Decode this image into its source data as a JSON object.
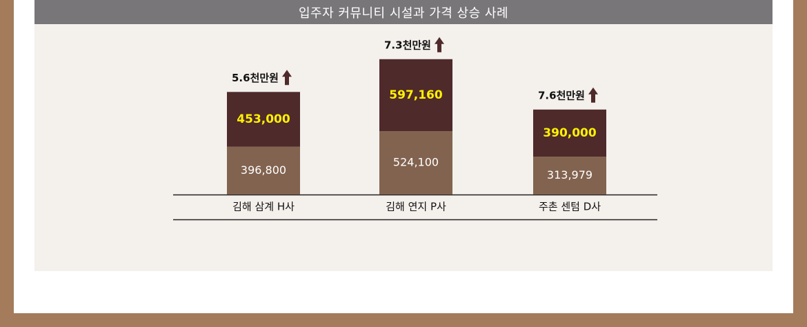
{
  "chart_data": {
    "type": "bar",
    "stacked": true,
    "title": "입주자 커뮤니티 시설과 가격 상승 사례",
    "categories": [
      "김해 삼계 H사",
      "김해 연지 P사",
      "주촌 센텀 D사"
    ],
    "series": [
      {
        "values": [
          396800,
          524100,
          313979
        ],
        "color": "#82634f"
      },
      {
        "values": [
          453000,
          597160,
          390000
        ],
        "color": "#4e2a2b"
      }
    ],
    "bottom_labels": [
      "396,800",
      "524,100",
      "313,979"
    ],
    "top_labels": [
      "453,000",
      "597,160",
      "390,000"
    ],
    "total_labels": [
      "5.6천만원",
      "7.3천만원",
      "7.6천만원"
    ],
    "annotation_icon": "up-arrow-icon",
    "colors": {
      "bottom": "#82634f",
      "top": "#4e2a2b",
      "top_label": "#fff200",
      "arrow": "#4e2a2b",
      "title_bar": "#79767a",
      "panel": "#f4f0ec",
      "frame": "#a47c5c"
    },
    "ylim": [
      0,
      1200000
    ],
    "legend": false,
    "grid": false
  }
}
